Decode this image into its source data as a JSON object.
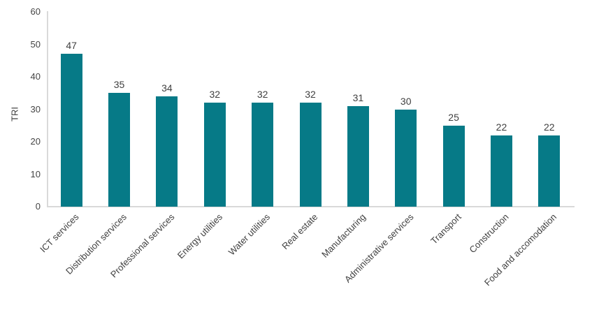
{
  "chart_data": {
    "type": "bar",
    "title": "",
    "categories": [
      "ICT services",
      "Distribution services",
      "Professional services",
      "Energy utilities",
      "Water utilities",
      "Real estate",
      "Manufacturing",
      "Administrative services",
      "Transport",
      "Construction",
      "Food and accomodation"
    ],
    "values": [
      47,
      35,
      34,
      32,
      32,
      32,
      31,
      30,
      25,
      22,
      22
    ],
    "xlabel": "",
    "ylabel": "TRI",
    "ylim": [
      0,
      60
    ],
    "yticks": [
      0,
      10,
      20,
      30,
      40,
      50,
      60
    ],
    "grid": false,
    "legend": "none",
    "value_labels_shown": true,
    "colors": {
      "bar": "#067a87",
      "text": "#404040",
      "axis": "#d9d9d9"
    }
  }
}
